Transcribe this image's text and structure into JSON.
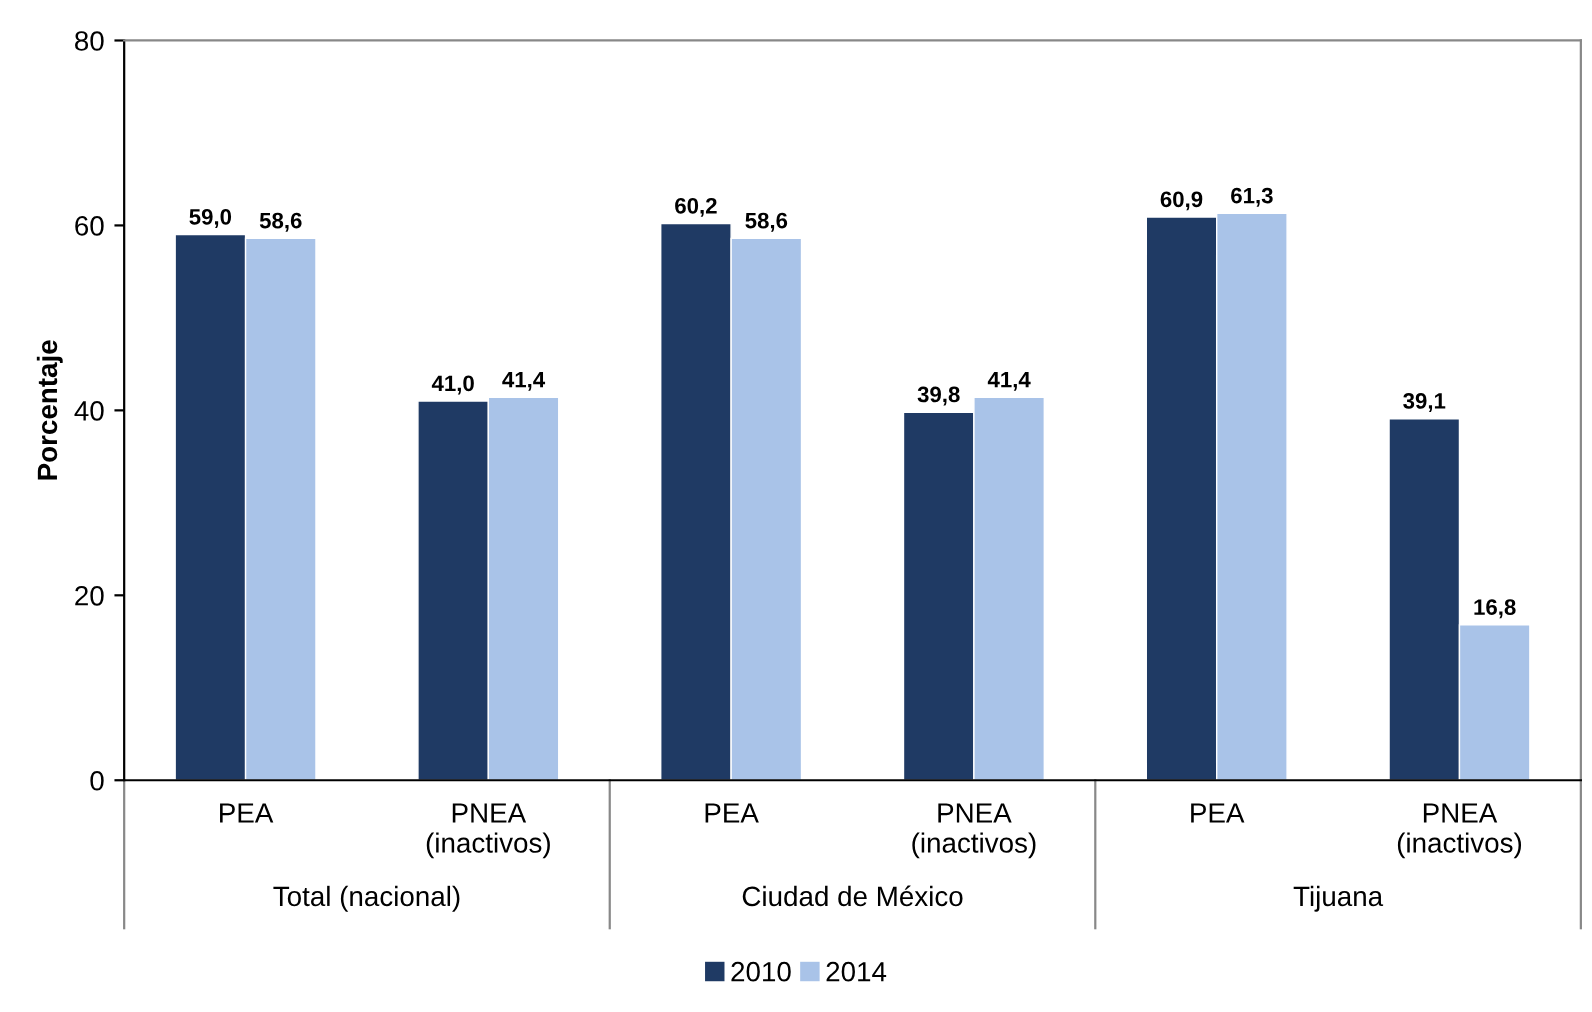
{
  "chart_data": {
    "type": "bar",
    "ylabel": "Porcentaje",
    "categories": [
      "PEA",
      "PNEA\n(inactivos)",
      "PEA",
      "PNEA\n(inactivos)",
      "PEA",
      "PNEA\n(inactivos)"
    ],
    "annotations": [
      "Total (nacional)",
      "Ciudad de México",
      "Tijuana"
    ],
    "series": [
      {
        "name": "2010",
        "color": "#1f3a64",
        "values": [
          59.0,
          41.0,
          60.2,
          39.8,
          60.9,
          39.1
        ],
        "value_labels": [
          "59,0",
          "41,0",
          "60,2",
          "39,8",
          "60,9",
          "39,1"
        ]
      },
      {
        "name": "2014",
        "color": "#a9c3e8",
        "values": [
          58.6,
          41.4,
          58.6,
          41.4,
          61.3,
          16.8
        ],
        "value_labels": [
          "58,6",
          "41,4",
          "58,6",
          "41,4",
          "61,3",
          "16,8"
        ]
      }
    ],
    "ylim": [
      0,
      80
    ],
    "yticks": [
      0,
      20,
      40,
      60,
      80
    ],
    "grid": false,
    "legend": "bottom"
  }
}
